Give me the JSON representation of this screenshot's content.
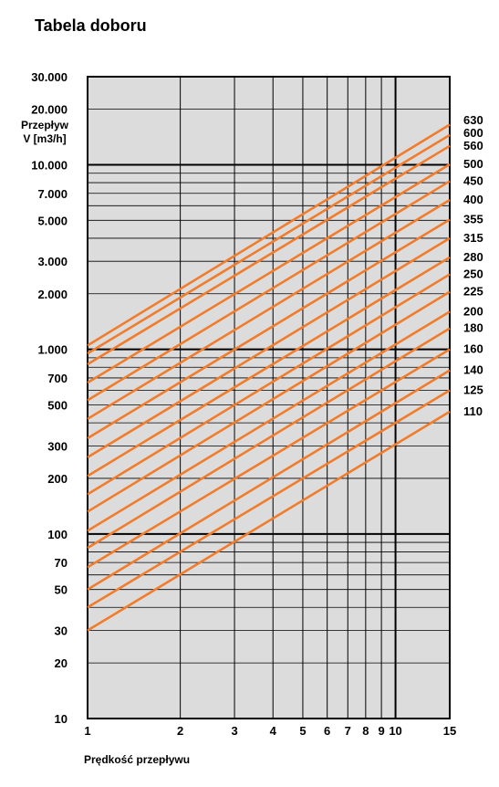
{
  "title": "Tabela doboru",
  "chart_data": {
    "type": "line",
    "title": "Tabela doboru",
    "ylabel_line1": "Przepływ",
    "ylabel_line2": "V [m3/h]",
    "xlabel": "Prędkość przepływu",
    "x_scale": "log",
    "y_scale": "log",
    "xlim": [
      1,
      15
    ],
    "ylim": [
      10,
      30000
    ],
    "x_ticks": [
      1,
      2,
      3,
      4,
      5,
      6,
      7,
      8,
      9,
      10,
      15
    ],
    "x_tick_labels": [
      "1",
      "2",
      "3",
      "4",
      "5",
      "6",
      "7",
      "8",
      "9",
      "10",
      "15"
    ],
    "y_ticks": [
      10,
      20,
      30,
      50,
      70,
      100,
      200,
      300,
      500,
      700,
      1000,
      2000,
      3000,
      5000,
      7000,
      10000,
      20000,
      30000
    ],
    "y_tick_labels": [
      "10",
      "20",
      "30",
      "50",
      "70",
      "100",
      "200",
      "300",
      "500",
      "700",
      "1.000",
      "2.000",
      "3.000",
      "5.000",
      "7.000",
      "10.000",
      "20.000",
      "30.000"
    ],
    "y_major_lines": [
      10,
      100,
      1000,
      10000
    ],
    "grid": true,
    "line_color": "#f07c2c",
    "background_color": "#dcdcdc",
    "series": [
      {
        "name": "110",
        "values": [
          [
            1,
            30
          ],
          [
            15,
            460
          ]
        ]
      },
      {
        "name": "125",
        "values": [
          [
            1,
            40
          ],
          [
            15,
            600
          ]
        ]
      },
      {
        "name": "140",
        "values": [
          [
            1,
            50
          ],
          [
            15,
            770
          ]
        ]
      },
      {
        "name": "160",
        "values": [
          [
            1,
            66
          ],
          [
            15,
            1000
          ]
        ]
      },
      {
        "name": "180",
        "values": [
          [
            1,
            84
          ],
          [
            15,
            1300
          ]
        ]
      },
      {
        "name": "200",
        "values": [
          [
            1,
            104
          ],
          [
            15,
            1600
          ]
        ]
      },
      {
        "name": "225",
        "values": [
          [
            1,
            132
          ],
          [
            15,
            2050
          ]
        ]
      },
      {
        "name": "250",
        "values": [
          [
            1,
            164
          ],
          [
            15,
            2550
          ]
        ]
      },
      {
        "name": "280",
        "values": [
          [
            1,
            206
          ],
          [
            15,
            3150
          ]
        ]
      },
      {
        "name": "315",
        "values": [
          [
            1,
            260
          ],
          [
            15,
            4000
          ]
        ]
      },
      {
        "name": "355",
        "values": [
          [
            1,
            330
          ],
          [
            15,
            5050
          ]
        ]
      },
      {
        "name": "400",
        "values": [
          [
            1,
            420
          ],
          [
            15,
            6450
          ]
        ]
      },
      {
        "name": "450",
        "values": [
          [
            1,
            530
          ],
          [
            15,
            8150
          ]
        ]
      },
      {
        "name": "500",
        "values": [
          [
            1,
            660
          ],
          [
            15,
            10050
          ]
        ]
      },
      {
        "name": "560",
        "values": [
          [
            1,
            830
          ],
          [
            15,
            12650
          ]
        ]
      },
      {
        "name": "600",
        "values": [
          [
            1,
            950
          ],
          [
            15,
            14500
          ]
        ]
      },
      {
        "name": "630",
        "values": [
          [
            1,
            1050
          ],
          [
            15,
            16500
          ]
        ]
      }
    ]
  }
}
